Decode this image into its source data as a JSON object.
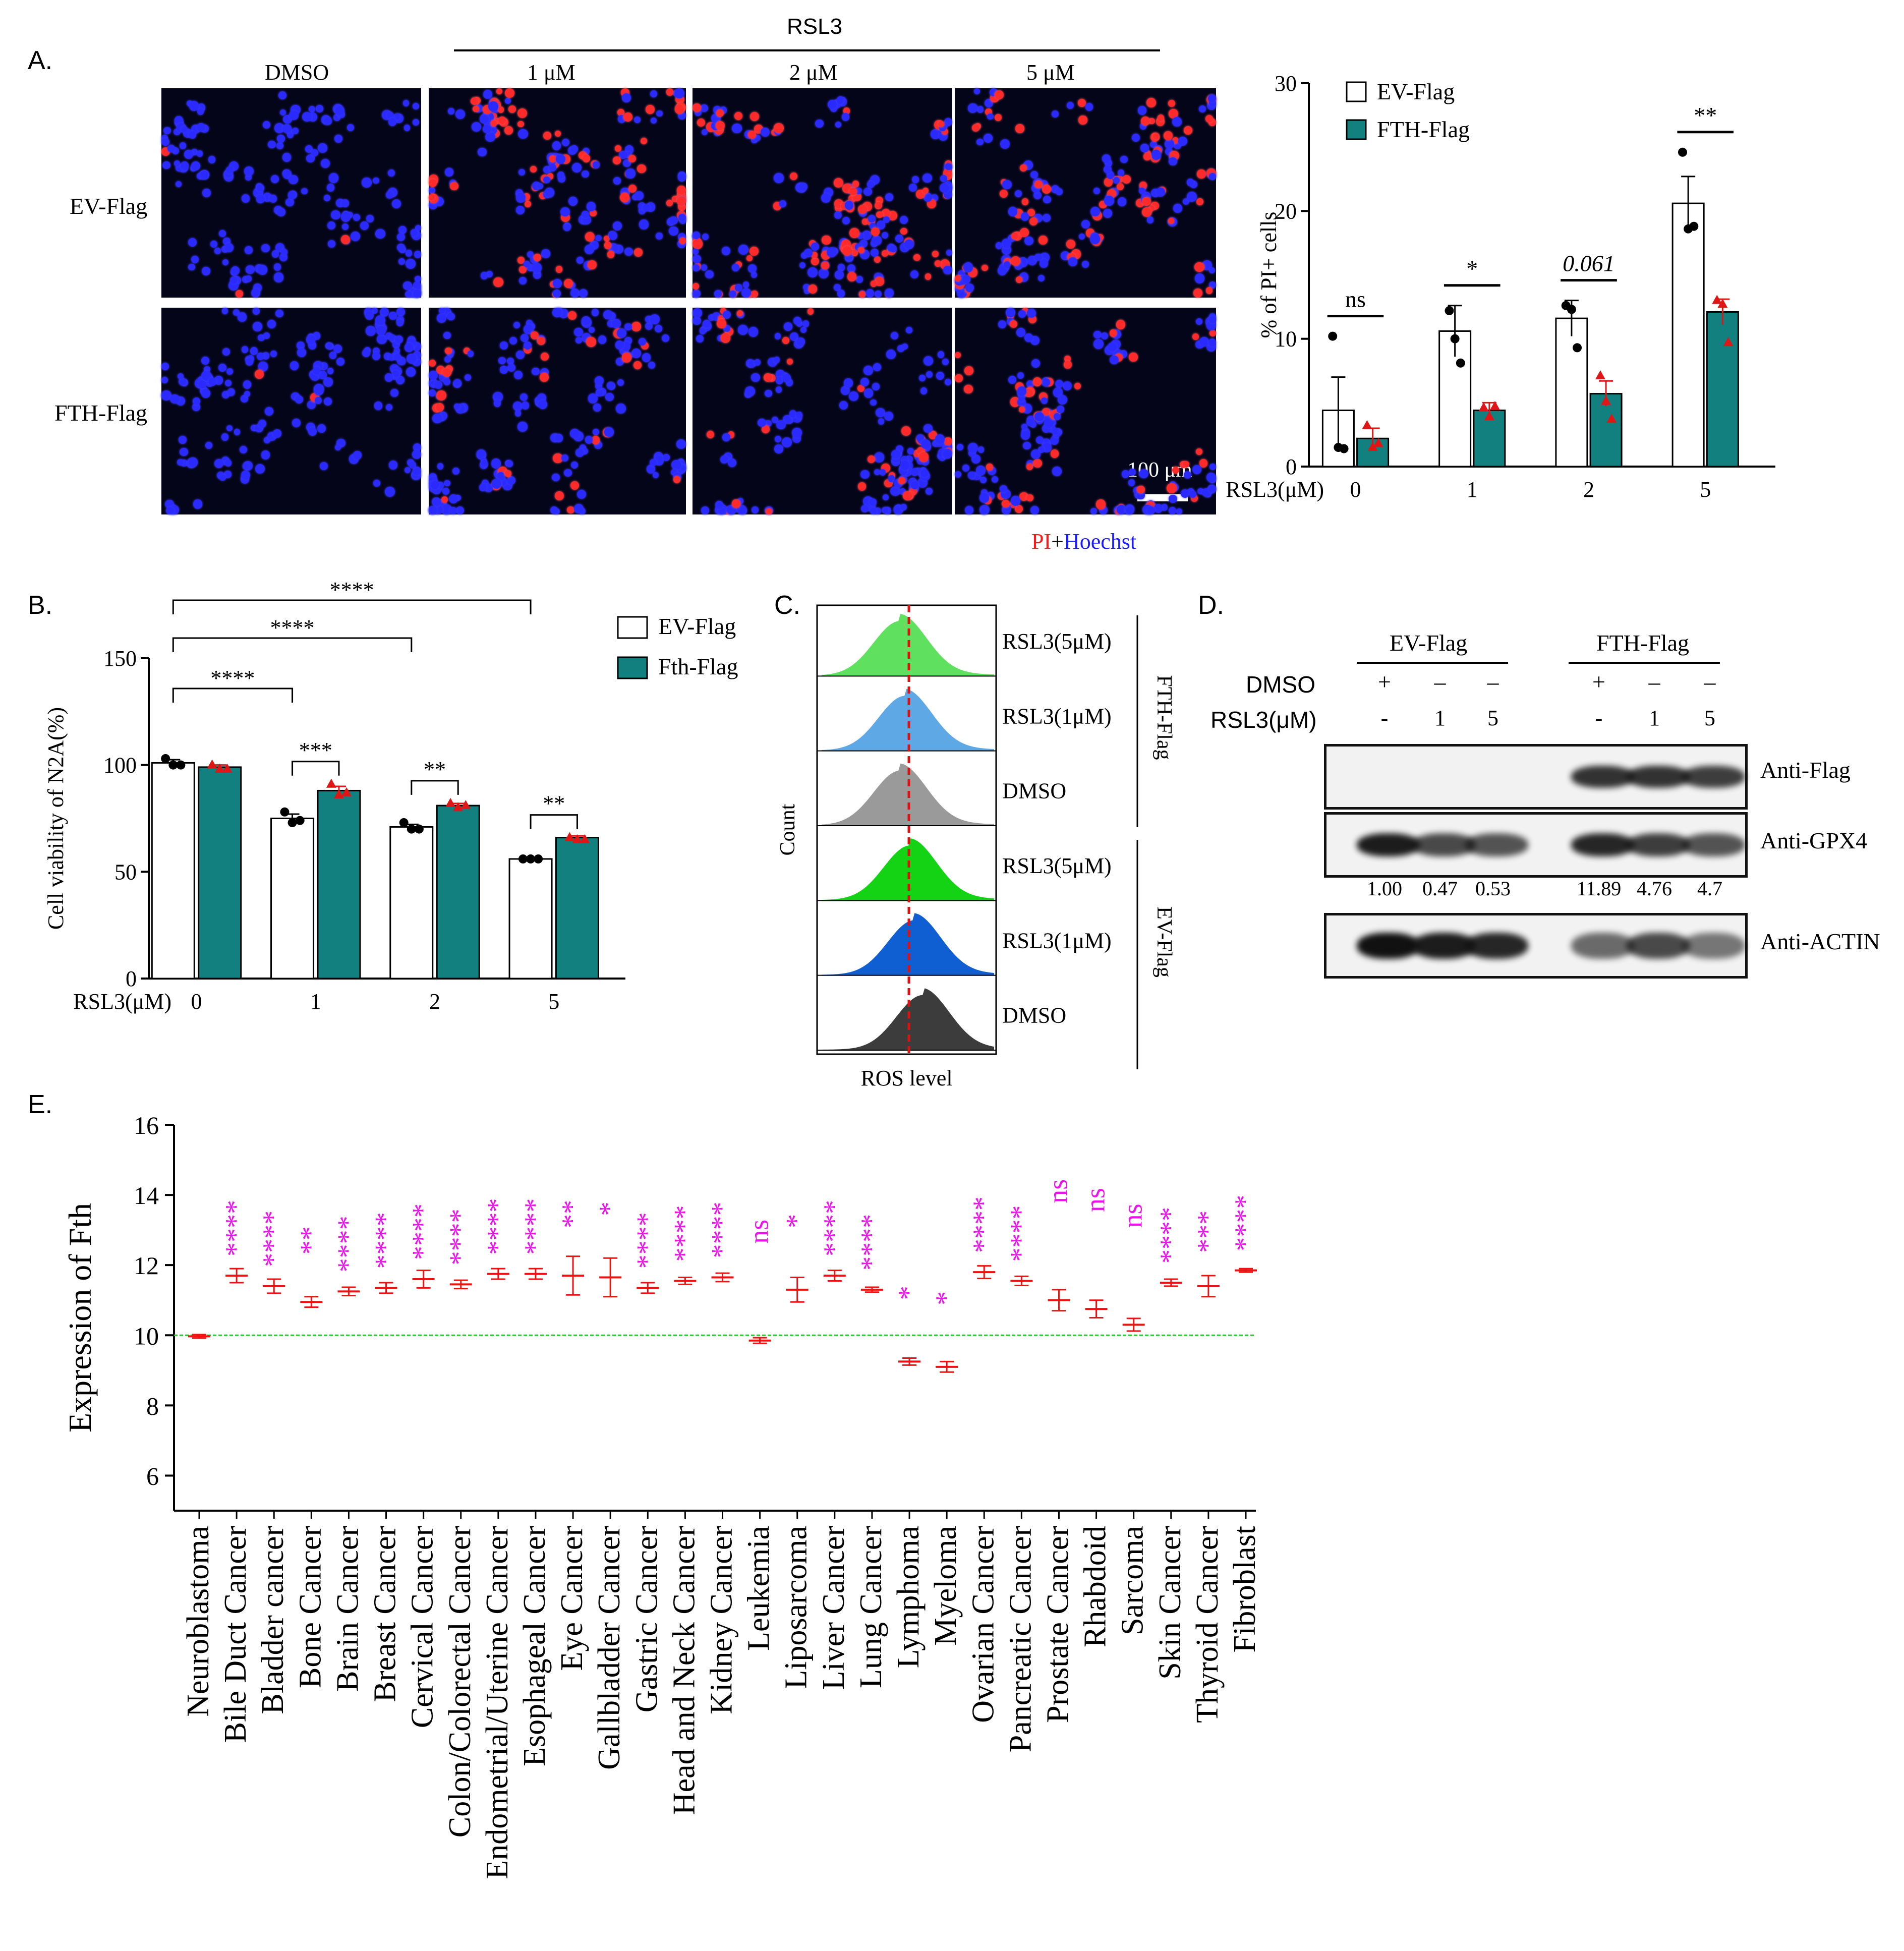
{
  "panelA": {
    "letter": "A.",
    "treatment_header": "RSL3",
    "columns": [
      "DMSO",
      "1 μM",
      "2 μM",
      "5 μM"
    ],
    "rows": [
      "EV-Flag",
      "FTH-Flag"
    ],
    "scale_bar": "100 μm",
    "stain_pi": "PI",
    "stain_plus": "+",
    "stain_hoechst": "Hoechst",
    "colors": {
      "pi": "#ff2a2a",
      "hoechst": "#2a2aff",
      "background": "#05051a"
    }
  },
  "panelB": {
    "letter": "B."
  },
  "panelC": {
    "letter": "C.",
    "ylabel": "Count",
    "xlabel": "ROS level",
    "tracks": [
      "RSL3(5μM)",
      "RSL3(1μM)",
      "DMSO",
      "RSL3(5μM)",
      "RSL3(1μM)",
      "DMSO"
    ],
    "group_top": "FTH-Flag",
    "group_bottom": "EV-Flag",
    "colors": [
      "#5fe05f",
      "#5fa8e6",
      "#9a9a9a",
      "#14d214",
      "#0f5fd2",
      "#3c3c3c"
    ]
  },
  "panelD": {
    "letter": "D.",
    "group_ev": "EV-Flag",
    "group_fth": "FTH-Flag",
    "row_dmso_label": "DMSO",
    "row_rsl3_label": "RSL3(μM)",
    "dmso_marks": [
      "+",
      "–",
      "–",
      "+",
      "–",
      "–"
    ],
    "rsl3_marks": [
      "-",
      "1",
      "5",
      "-",
      "1",
      "5"
    ],
    "blots": [
      "Anti-Flag",
      "Anti-GPX4",
      "Anti-ACTIN"
    ],
    "gpx4_quant": [
      "1.00",
      "0.47",
      "0.53",
      "11.89",
      "4.76",
      "4.7"
    ]
  },
  "panelE": {
    "letter": "E."
  },
  "chart_data": [
    {
      "id": "A-bar",
      "type": "bar",
      "categories": [
        "0",
        "1",
        "2",
        "5"
      ],
      "xlabel": "RSL3(μM)",
      "ylabel": "% of PI+ cells",
      "ylim": [
        0,
        30
      ],
      "yticks": [
        0,
        10,
        20,
        30
      ],
      "legend": [
        "EV-Flag",
        "FTH-Flag"
      ],
      "legend_position": "top-left",
      "series": [
        {
          "name": "EV-Flag",
          "color": "#ffffff",
          "values": [
            4.4,
            10.6,
            11.6,
            20.6
          ],
          "err": [
            2.6,
            2.0,
            1.4,
            2.1
          ],
          "points": [
            [
              10.2,
              1.5,
              1.4
            ],
            [
              12.2,
              10.0,
              8.1
            ],
            [
              12.6,
              12.3,
              9.3
            ],
            [
              24.6,
              18.6,
              18.8
            ]
          ]
        },
        {
          "name": "FTH-Flag",
          "color": "#138080",
          "values": [
            2.2,
            4.4,
            5.7,
            12.1
          ],
          "err": [
            0.8,
            0.6,
            1.0,
            1.0
          ],
          "points": [
            [
              3.2,
              1.5,
              1.8
            ],
            [
              4.6,
              3.9,
              4.7
            ],
            [
              7.1,
              5.1,
              3.7
            ],
            [
              13.0,
              12.7,
              9.7
            ]
          ]
        }
      ],
      "significance": [
        "ns",
        "*",
        "0.061",
        "**"
      ]
    },
    {
      "id": "B-bar",
      "type": "bar",
      "categories": [
        "0",
        "1",
        "2",
        "5"
      ],
      "xlabel": "RSL3(μM)",
      "ylabel": "Cell viability of N2A(%)",
      "ylim": [
        0,
        150
      ],
      "yticks": [
        0,
        50,
        100,
        150
      ],
      "legend": [
        "EV-Flag",
        "Fth-Flag"
      ],
      "legend_position": "top-right",
      "series": [
        {
          "name": "EV-Flag",
          "color": "#ffffff",
          "values": [
            101,
            75,
            71,
            56
          ],
          "err": [
            1.5,
            2.0,
            1.2,
            0.8
          ],
          "points": [
            [
              103,
              100,
              100
            ],
            [
              78,
              73,
              74
            ],
            [
              73,
              70,
              70
            ],
            [
              56,
              56,
              56
            ]
          ]
        },
        {
          "name": "Fth-Flag",
          "color": "#138080",
          "values": [
            99,
            88,
            81,
            66
          ],
          "err": [
            1.0,
            2.0,
            1.0,
            0.8
          ],
          "points": [
            [
              100,
              98,
              98
            ],
            [
              91,
              86,
              87
            ],
            [
              82,
              80,
              81
            ],
            [
              66,
              65,
              65
            ]
          ]
        }
      ],
      "pair_significance": [
        "***",
        "**",
        "**"
      ],
      "bracket_significance": [
        "****",
        "****",
        "****"
      ]
    },
    {
      "id": "E-scatter",
      "type": "scatter",
      "ylabel": "Expression of  Fth",
      "ylim": [
        5,
        16
      ],
      "yticks": [
        6,
        8,
        10,
        12,
        14,
        16
      ],
      "reference_line": 10,
      "categories": [
        "Neuroblastoma",
        "Bile Duct Cancer",
        "Bladder cancer",
        "Bone Cancer",
        "Brain Cancer",
        "Breast Cancer",
        "Cervical Cancer",
        "Colon/Colorectal Cancer",
        "Endometrial/Uterine Cancer",
        "Esophageal Cancer",
        "Eye Cancer",
        "Gallbladder Cancer",
        "Gastric Cancer",
        "Head and Neck Cancer",
        "Kidney Cancer",
        "Leukemia",
        "Liposarcoma",
        "Liver Cancer",
        "Lung Cancer",
        "Lymphoma",
        "Myeloma",
        "Ovarian Cancer",
        "Pancreatic Cancer",
        "Prostate Cancer",
        "Rhabdoid",
        "Sarcoma",
        "Skin Cancer",
        "Thyroid Cancer",
        "Fibroblast"
      ],
      "values": [
        9.97,
        11.7,
        11.4,
        10.95,
        11.25,
        11.35,
        11.6,
        11.45,
        11.75,
        11.75,
        11.7,
        11.65,
        11.35,
        11.55,
        11.65,
        9.85,
        11.3,
        11.7,
        11.3,
        9.25,
        9.1,
        11.8,
        11.55,
        11.0,
        10.75,
        10.3,
        11.5,
        11.4,
        11.85
      ],
      "errors": [
        0.05,
        0.2,
        0.2,
        0.15,
        0.12,
        0.15,
        0.25,
        0.12,
        0.15,
        0.15,
        0.55,
        0.55,
        0.15,
        0.1,
        0.12,
        0.08,
        0.35,
        0.15,
        0.07,
        0.1,
        0.15,
        0.18,
        0.13,
        0.3,
        0.25,
        0.18,
        0.1,
        0.3,
        0.05
      ],
      "significance": [
        "",
        "****",
        "****",
        "**",
        "****",
        "****",
        "****",
        "****",
        "****",
        "****",
        "**",
        "*",
        "****",
        "****",
        "****",
        "ns",
        "*",
        "****",
        "****",
        "*",
        "*",
        "****",
        "****",
        "ns",
        "ns",
        "ns",
        "****",
        "***",
        "****"
      ],
      "colors": {
        "points": "#ee1111",
        "significance": "#ee11ee",
        "reference": "#22cc22"
      }
    }
  ]
}
